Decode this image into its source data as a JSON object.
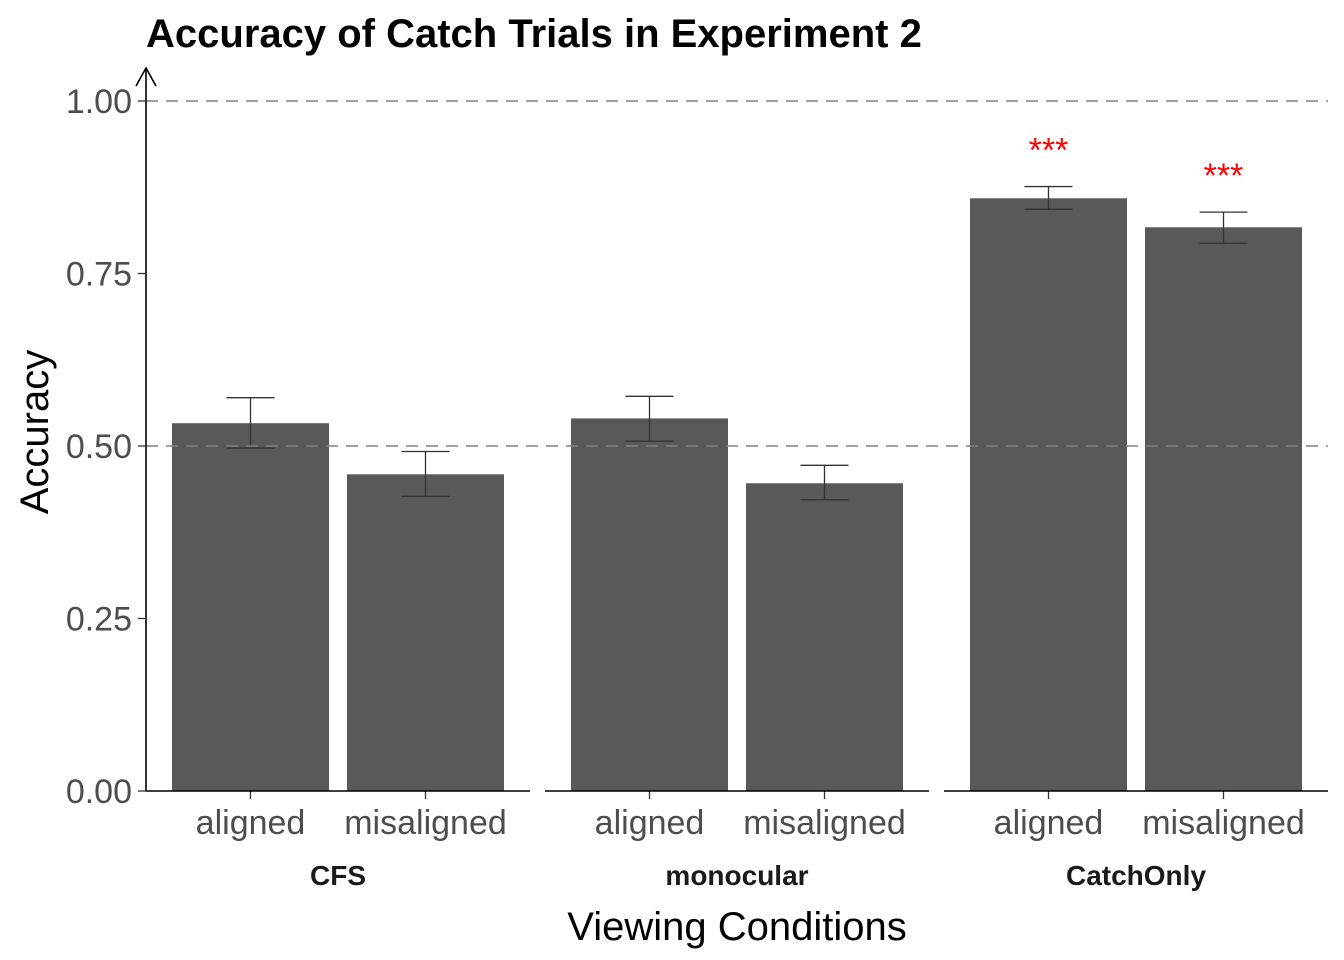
{
  "chart_data": {
    "type": "bar",
    "title": "Accuracy of Catch Trials in Experiment 2",
    "xlabel": "Viewing Conditions",
    "ylabel": "Accuracy",
    "ylim": [
      0,
      1.0
    ],
    "yticks": [
      "0.00",
      "0.25",
      "0.50",
      "0.75",
      "1.00"
    ],
    "ytick_values": [
      0,
      0.25,
      0.5,
      0.75,
      1.0
    ],
    "reference_lines": [
      0.5,
      1.0
    ],
    "bar_color": "#595959",
    "errorbar_color": "#333333",
    "reference_line_color": "#808080",
    "significance_color": "#ff0000",
    "grid": false,
    "panels": [
      {
        "name": "CFS",
        "categories": [
          "aligned",
          "misaligned"
        ],
        "values": [
          0.533,
          0.459
        ],
        "error_low": [
          0.497,
          0.427
        ],
        "error_high": [
          0.57,
          0.492
        ],
        "significance": [
          "",
          ""
        ]
      },
      {
        "name": "monocular",
        "categories": [
          "aligned",
          "misaligned"
        ],
        "values": [
          0.54,
          0.446
        ],
        "error_low": [
          0.507,
          0.422
        ],
        "error_high": [
          0.572,
          0.472
        ],
        "significance": [
          "",
          ""
        ]
      },
      {
        "name": "CatchOnly",
        "categories": [
          "aligned",
          "misaligned"
        ],
        "values": [
          0.859,
          0.817
        ],
        "error_low": [
          0.843,
          0.794
        ],
        "error_high": [
          0.876,
          0.839
        ],
        "significance": [
          "***",
          "***"
        ]
      }
    ]
  }
}
